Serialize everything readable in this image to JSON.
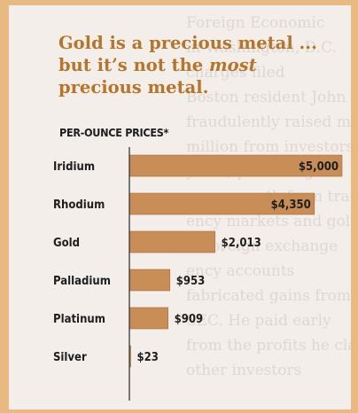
{
  "chart_data": {
    "type": "bar",
    "orientation": "horizontal",
    "title_parts": [
      "Gold is a precious metal ... but it’s not the ",
      "most",
      " precious metal."
    ],
    "subtitle": "PER-OUNCE PRICES*",
    "categories": [
      "Iridium",
      "Rhodium",
      "Gold",
      "Palladium",
      "Platinum",
      "Silver"
    ],
    "values": [
      5000,
      4350,
      2013,
      953,
      909,
      23
    ],
    "value_labels": [
      "$5,000",
      "$4,350",
      "$2,013",
      "$953",
      "$909",
      "$23"
    ],
    "label_inside": [
      true,
      true,
      false,
      false,
      false,
      false
    ],
    "xlim": [
      0,
      5000
    ],
    "bar_color": "#c98d57",
    "bar_stroke": "#a86a35",
    "axis_color": "#2a2a2a",
    "title_color": "#b5752c",
    "grid": false,
    "legend": "none"
  },
  "background_bleed": [
    "Foreign Economic",
    "in Washington, D.C.",
    "charges filed",
    "Boston resident John Feeney",
    "fraudulently raised more",
    "million from investors",
    "years, promising to",
    "every month from trading",
    "ency markets and gold",
    "in foreign exchange",
    "ency accounts",
    "fabricated gains from trades",
    "SEC. He paid early",
    "from the profits he claimed",
    "other investors"
  ]
}
